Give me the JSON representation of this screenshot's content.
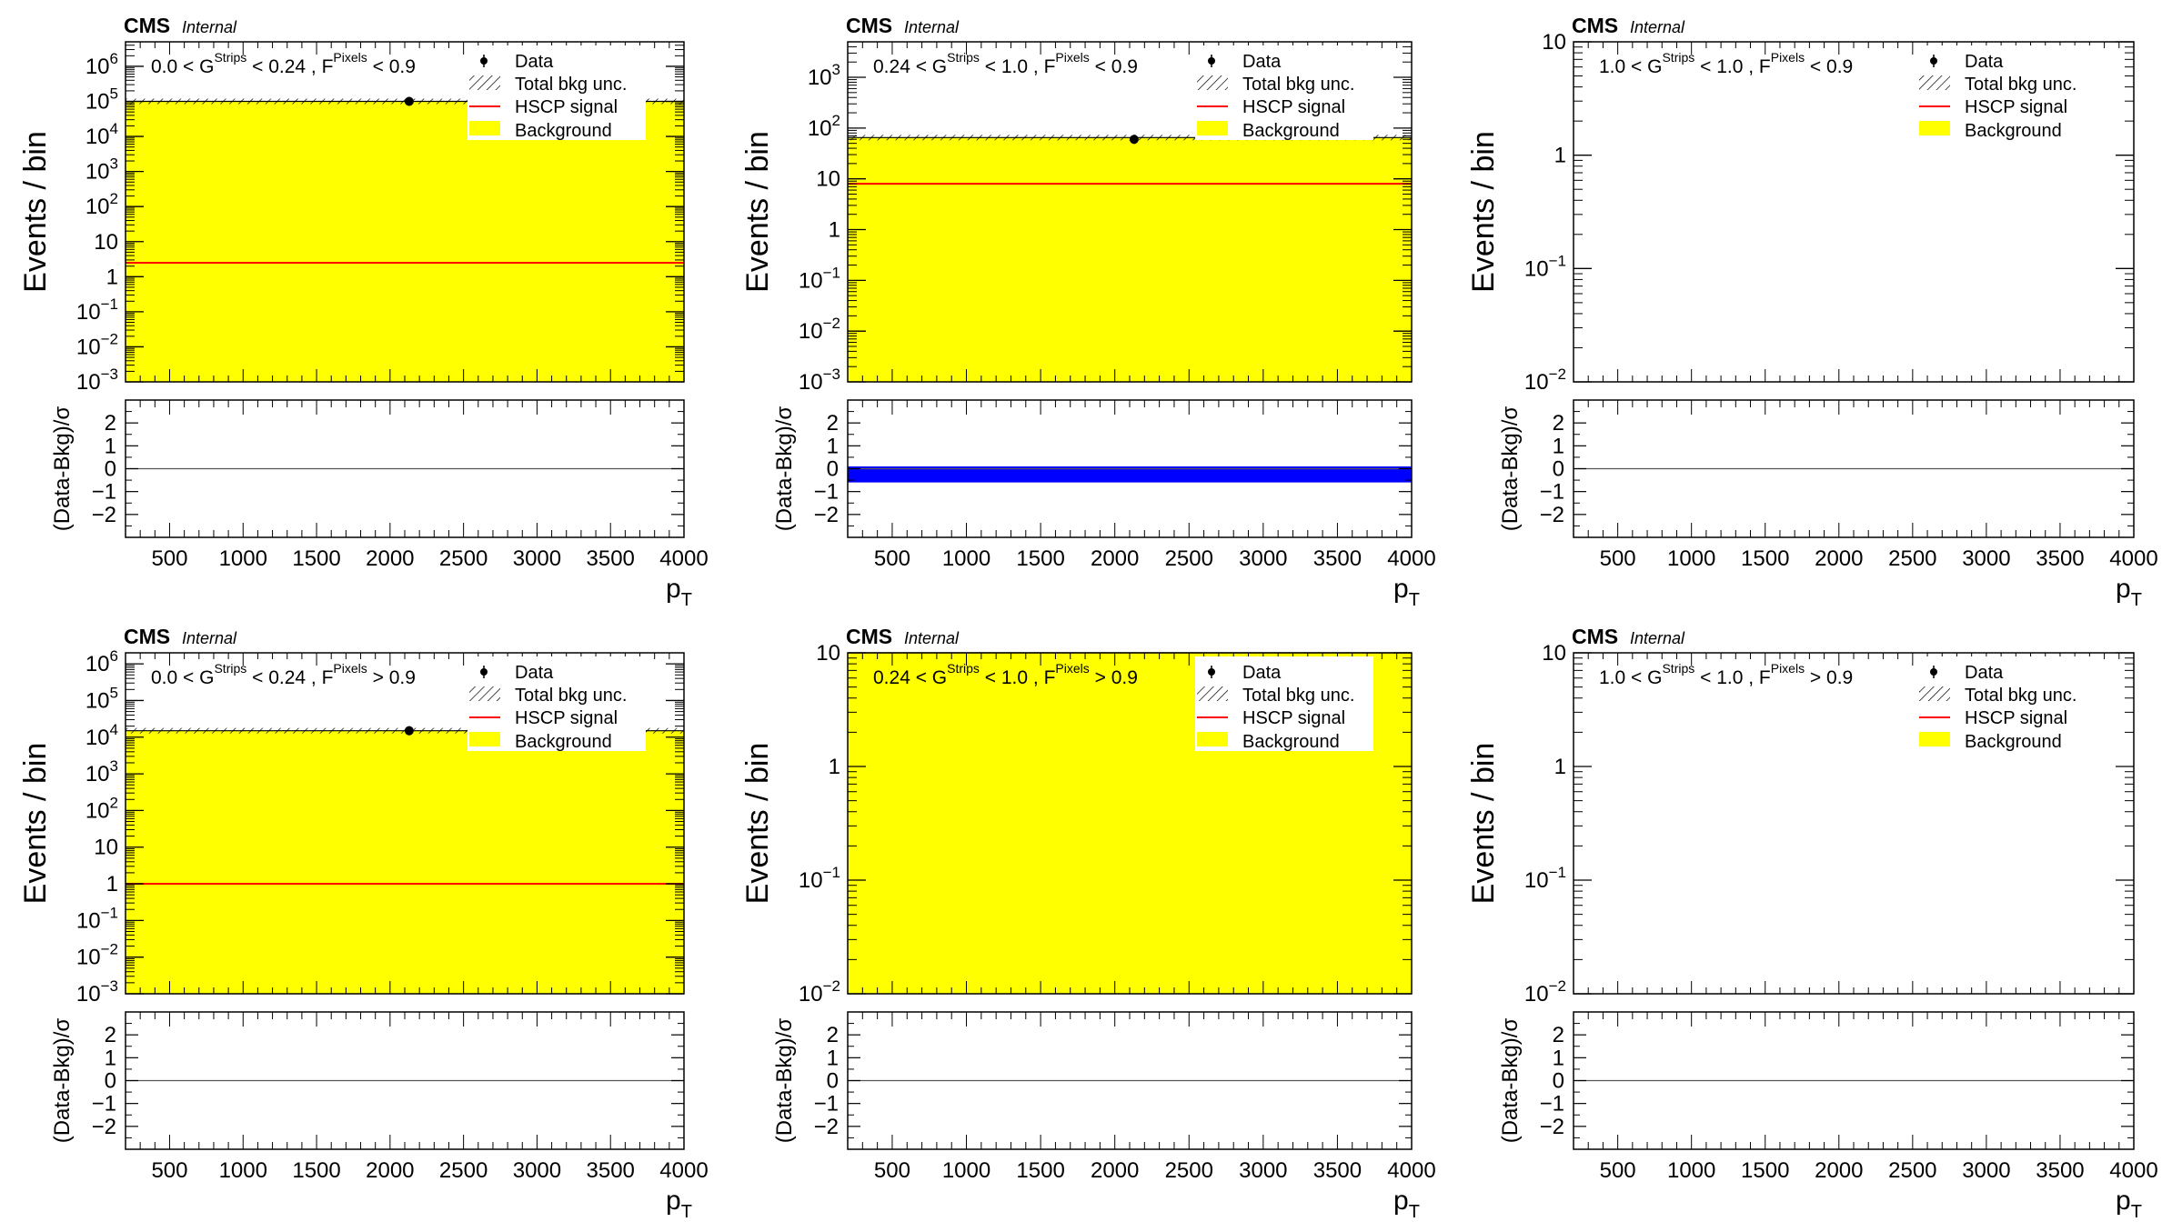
{
  "colors": {
    "background_fill": "#ffff00",
    "signal_line": "#ff0000",
    "ratio_band": "#0000ff",
    "data_marker": "#000000",
    "axis": "#000000"
  },
  "chart_data": [
    {
      "type": "bar",
      "panel": "top-left",
      "cms_label": "CMS",
      "cms_sublabel": "Internal",
      "region_parts": {
        "lo": "0.0 < G",
        "g_sup": "Strips",
        "mid": "< 0.24 , F",
        "f_sup": "Pixels",
        "hi": "< 0.9"
      },
      "ylabel": "Events / bin",
      "xlabel": "p",
      "xlabel_sub": "T",
      "ratio_ylabel": "(Data-Bkg)/σ",
      "xlim": [
        200,
        4000
      ],
      "ylim": [
        0.001,
        5000000
      ],
      "yscale": "log",
      "y_ticks": [
        {
          "v": 0.001,
          "m": "10",
          "e": "−3"
        },
        {
          "v": 0.01,
          "m": "10",
          "e": "−2"
        },
        {
          "v": 0.1,
          "m": "10",
          "e": "−1"
        },
        {
          "v": 1,
          "m": "1",
          "e": ""
        },
        {
          "v": 10,
          "m": "10",
          "e": ""
        },
        {
          "v": 100,
          "m": "10",
          "e": "2"
        },
        {
          "v": 1000,
          "m": "10",
          "e": "3"
        },
        {
          "v": 10000,
          "m": "10",
          "e": "4"
        },
        {
          "v": 100000,
          "m": "10",
          "e": "5"
        },
        {
          "v": 1000000,
          "m": "10",
          "e": "6"
        }
      ],
      "x_ticks": [
        "500",
        "1000",
        "1500",
        "2000",
        "2500",
        "3000",
        "3500",
        "4000"
      ],
      "ratio_ylim": [
        -3,
        3
      ],
      "ratio_ticks": [
        "2",
        "1",
        "0",
        "−1",
        "−2"
      ],
      "background": [
        {
          "x0": 200,
          "x1": 4000,
          "y": 100000
        }
      ],
      "signal": 2.5,
      "data_points": [
        {
          "x": 2130,
          "y": 100000
        }
      ],
      "ratio_band": null,
      "legend": {
        "data": "Data",
        "unc": "Total bkg unc.",
        "signal": "HSCP signal",
        "bkg": "Background"
      }
    },
    {
      "type": "bar",
      "panel": "top-middle",
      "cms_label": "CMS",
      "cms_sublabel": "Internal",
      "region_parts": {
        "lo": "0.24 < G",
        "g_sup": "Strips",
        "mid": "< 1.0 , F",
        "f_sup": "Pixels",
        "hi": "< 0.9"
      },
      "ylabel": "Events / bin",
      "xlabel": "p",
      "xlabel_sub": "T",
      "ratio_ylabel": "(Data-Bkg)/σ",
      "xlim": [
        200,
        4000
      ],
      "ylim": [
        0.001,
        5000
      ],
      "yscale": "log",
      "y_ticks": [
        {
          "v": 0.001,
          "m": "10",
          "e": "−3"
        },
        {
          "v": 0.01,
          "m": "10",
          "e": "−2"
        },
        {
          "v": 0.1,
          "m": "10",
          "e": "−1"
        },
        {
          "v": 1,
          "m": "1",
          "e": ""
        },
        {
          "v": 10,
          "m": "10",
          "e": ""
        },
        {
          "v": 100,
          "m": "10",
          "e": "2"
        },
        {
          "v": 1000,
          "m": "10",
          "e": "3"
        }
      ],
      "x_ticks": [
        "500",
        "1000",
        "1500",
        "2000",
        "2500",
        "3000",
        "3500",
        "4000"
      ],
      "ratio_ylim": [
        -3,
        3
      ],
      "ratio_ticks": [
        "2",
        "1",
        "0",
        "−1",
        "−2"
      ],
      "background": [
        {
          "x0": 200,
          "x1": 4000,
          "y": 65
        }
      ],
      "signal": 8,
      "data_points": [
        {
          "x": 2130,
          "y": 60
        }
      ],
      "ratio_band": [
        -0.6,
        0.1
      ],
      "legend": {
        "data": "Data",
        "unc": "Total bkg unc.",
        "signal": "HSCP signal",
        "bkg": "Background"
      }
    },
    {
      "type": "bar",
      "panel": "top-right",
      "cms_label": "CMS",
      "cms_sublabel": "Internal",
      "region_parts": {
        "lo": "1.0 < G",
        "g_sup": "Strips",
        "mid": "< 1.0 , F",
        "f_sup": "Pixels",
        "hi": "< 0.9"
      },
      "ylabel": "Events / bin",
      "xlabel": "p",
      "xlabel_sub": "T",
      "ratio_ylabel": "(Data-Bkg)/σ",
      "xlim": [
        200,
        4000
      ],
      "ylim": [
        0.01,
        10
      ],
      "yscale": "log",
      "y_ticks": [
        {
          "v": 0.01,
          "m": "10",
          "e": "−2"
        },
        {
          "v": 0.1,
          "m": "10",
          "e": "−1"
        },
        {
          "v": 1,
          "m": "1",
          "e": ""
        },
        {
          "v": 10,
          "m": "10",
          "e": ""
        }
      ],
      "x_ticks": [
        "500",
        "1000",
        "1500",
        "2000",
        "2500",
        "3000",
        "3500",
        "4000"
      ],
      "ratio_ylim": [
        -3,
        3
      ],
      "ratio_ticks": [
        "2",
        "1",
        "0",
        "−1",
        "−2"
      ],
      "background": [],
      "signal": null,
      "data_points": [],
      "ratio_band": null,
      "legend": {
        "data": "Data",
        "unc": "Total bkg unc.",
        "signal": "HSCP signal",
        "bkg": "Background"
      }
    },
    {
      "type": "bar",
      "panel": "bottom-left",
      "cms_label": "CMS",
      "cms_sublabel": "Internal",
      "region_parts": {
        "lo": "0.0 < G",
        "g_sup": "Strips",
        "mid": "< 0.24 , F",
        "f_sup": "Pixels",
        "hi": "> 0.9"
      },
      "ylabel": "Events / bin",
      "xlabel": "p",
      "xlabel_sub": "T",
      "ratio_ylabel": "(Data-Bkg)/σ",
      "xlim": [
        200,
        4000
      ],
      "ylim": [
        0.001,
        2000000
      ],
      "yscale": "log",
      "y_ticks": [
        {
          "v": 0.001,
          "m": "10",
          "e": "−3"
        },
        {
          "v": 0.01,
          "m": "10",
          "e": "−2"
        },
        {
          "v": 0.1,
          "m": "10",
          "e": "−1"
        },
        {
          "v": 1,
          "m": "1",
          "e": ""
        },
        {
          "v": 10,
          "m": "10",
          "e": ""
        },
        {
          "v": 100,
          "m": "10",
          "e": "2"
        },
        {
          "v": 1000,
          "m": "10",
          "e": "3"
        },
        {
          "v": 10000,
          "m": "10",
          "e": "4"
        },
        {
          "v": 100000,
          "m": "10",
          "e": "5"
        },
        {
          "v": 1000000,
          "m": "10",
          "e": "6"
        }
      ],
      "x_ticks": [
        "500",
        "1000",
        "1500",
        "2000",
        "2500",
        "3000",
        "3500",
        "4000"
      ],
      "ratio_ylim": [
        -3,
        3
      ],
      "ratio_ticks": [
        "2",
        "1",
        "0",
        "−1",
        "−2"
      ],
      "background": [
        {
          "x0": 200,
          "x1": 4000,
          "y": 15000
        }
      ],
      "signal": 1,
      "data_points": [
        {
          "x": 2130,
          "y": 15000
        }
      ],
      "ratio_band": null,
      "legend": {
        "data": "Data",
        "unc": "Total bkg unc.",
        "signal": "HSCP signal",
        "bkg": "Background"
      }
    },
    {
      "type": "bar",
      "panel": "bottom-middle",
      "cms_label": "CMS",
      "cms_sublabel": "Internal",
      "region_parts": {
        "lo": "0.24 < G",
        "g_sup": "Strips",
        "mid": "< 1.0 , F",
        "f_sup": "Pixels",
        "hi": "> 0.9"
      },
      "ylabel": "Events / bin",
      "xlabel": "p",
      "xlabel_sub": "T",
      "ratio_ylabel": "(Data-Bkg)/σ",
      "xlim": [
        200,
        4000
      ],
      "ylim": [
        0.01,
        10
      ],
      "yscale": "log",
      "y_ticks": [
        {
          "v": 0.01,
          "m": "10",
          "e": "−2"
        },
        {
          "v": 0.1,
          "m": "10",
          "e": "−1"
        },
        {
          "v": 1,
          "m": "1",
          "e": ""
        },
        {
          "v": 10,
          "m": "10",
          "e": ""
        }
      ],
      "x_ticks": [
        "500",
        "1000",
        "1500",
        "2000",
        "2500",
        "3000",
        "3500",
        "4000"
      ],
      "ratio_ylim": [
        -3,
        3
      ],
      "ratio_ticks": [
        "2",
        "1",
        "0",
        "−1",
        "−2"
      ],
      "background": [
        {
          "x0": 200,
          "x1": 4000,
          "y": 10
        }
      ],
      "signal": null,
      "data_points": [],
      "ratio_band": null,
      "legend": {
        "data": "Data",
        "unc": "Total bkg unc.",
        "signal": "HSCP signal",
        "bkg": "Background"
      }
    },
    {
      "type": "bar",
      "panel": "bottom-right",
      "cms_label": "CMS",
      "cms_sublabel": "Internal",
      "region_parts": {
        "lo": "1.0 < G",
        "g_sup": "Strips",
        "mid": "< 1.0 , F",
        "f_sup": "Pixels",
        "hi": "> 0.9"
      },
      "ylabel": "Events / bin",
      "xlabel": "p",
      "xlabel_sub": "T",
      "ratio_ylabel": "(Data-Bkg)/σ",
      "xlim": [
        200,
        4000
      ],
      "ylim": [
        0.01,
        10
      ],
      "yscale": "log",
      "y_ticks": [
        {
          "v": 0.01,
          "m": "10",
          "e": "−2"
        },
        {
          "v": 0.1,
          "m": "10",
          "e": "−1"
        },
        {
          "v": 1,
          "m": "1",
          "e": ""
        },
        {
          "v": 10,
          "m": "10",
          "e": ""
        }
      ],
      "x_ticks": [
        "500",
        "1000",
        "1500",
        "2000",
        "2500",
        "3000",
        "3500",
        "4000"
      ],
      "ratio_ylim": [
        -3,
        3
      ],
      "ratio_ticks": [
        "2",
        "1",
        "0",
        "−1",
        "−2"
      ],
      "background": [],
      "signal": null,
      "data_points": [],
      "ratio_band": null,
      "legend": {
        "data": "Data",
        "unc": "Total bkg unc.",
        "signal": "HSCP signal",
        "bkg": "Background"
      }
    }
  ]
}
